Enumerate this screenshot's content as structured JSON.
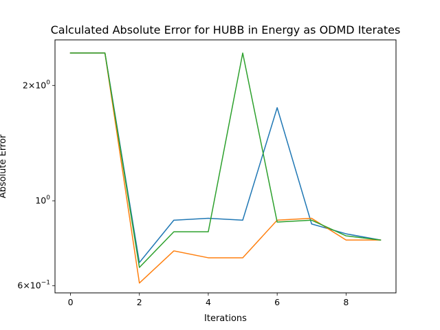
{
  "chart_data": {
    "type": "line",
    "title": "Calculated Absolute Error for HUBB in Energy as ODMD Iterates",
    "xlabel": "Iterations",
    "ylabel": "Absolute Error",
    "yscale": "log",
    "xlim": [
      -0.45,
      9.45
    ],
    "ylim": [
      0.575,
      2.63
    ],
    "x": [
      0,
      1,
      2,
      3,
      4,
      5,
      6,
      7,
      8,
      9
    ],
    "x_ticks": [
      {
        "value": 0,
        "label": "0"
      },
      {
        "value": 2,
        "label": "2"
      },
      {
        "value": 4,
        "label": "4"
      },
      {
        "value": 6,
        "label": "6"
      },
      {
        "value": 8,
        "label": "8"
      }
    ],
    "y_ticks": [
      {
        "value": 0.6,
        "base": "6×10",
        "exp": "−1"
      },
      {
        "value": 1.0,
        "base": "10",
        "exp": "0"
      },
      {
        "value": 2.0,
        "base": "2×10",
        "exp": "0"
      }
    ],
    "grid": false,
    "legend": "none",
    "series": [
      {
        "color": "#1f77b4",
        "values": [
          2.43,
          2.43,
          0.69,
          0.89,
          0.9,
          0.89,
          1.75,
          0.87,
          0.82,
          0.79
        ]
      },
      {
        "color": "#ff7f0e",
        "values": [
          2.43,
          2.43,
          0.61,
          0.74,
          0.71,
          0.71,
          0.89,
          0.9,
          0.79,
          0.79
        ]
      },
      {
        "color": "#2ca02c",
        "values": [
          2.43,
          2.43,
          0.67,
          0.83,
          0.83,
          2.43,
          0.88,
          0.89,
          0.81,
          0.79
        ]
      }
    ]
  }
}
